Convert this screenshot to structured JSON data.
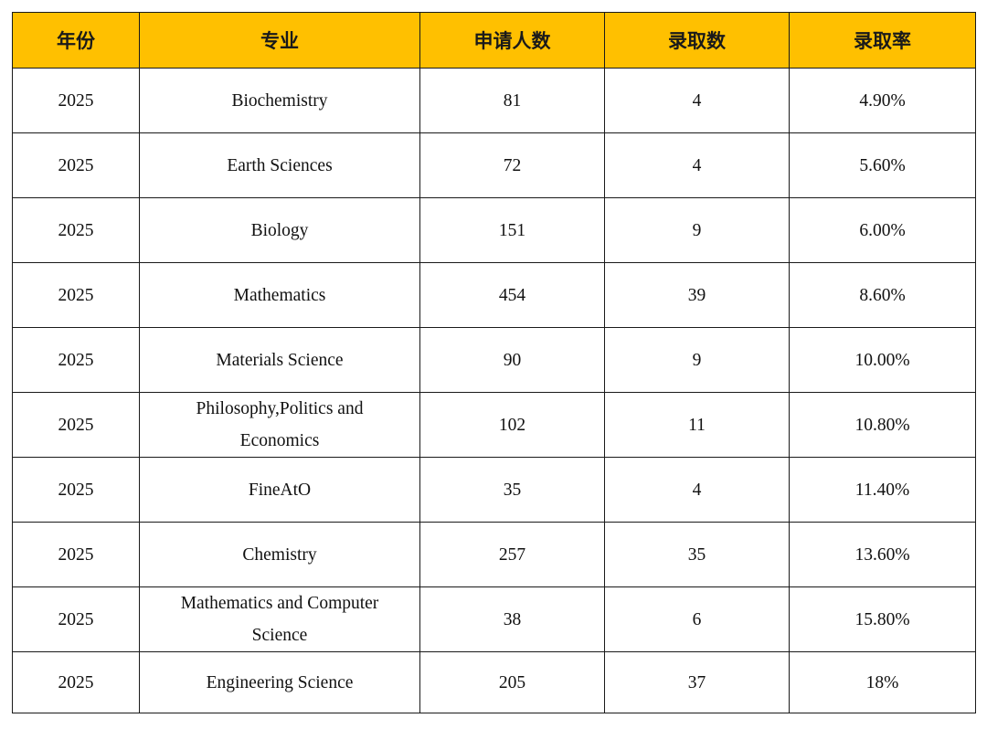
{
  "headers": {
    "year": "年份",
    "major": "专业",
    "applicants": "申请人数",
    "admitted": "录取数",
    "rate": "录取率"
  },
  "rows": [
    {
      "year": "2025",
      "major": "Biochemistry",
      "applicants": "81",
      "admitted": "4",
      "rate": "4.90%"
    },
    {
      "year": "2025",
      "major": "Earth Sciences",
      "applicants": "72",
      "admitted": "4",
      "rate": "5.60%"
    },
    {
      "year": "2025",
      "major": "Biology",
      "applicants": "151",
      "admitted": "9",
      "rate": "6.00%"
    },
    {
      "year": "2025",
      "major": "Mathematics",
      "applicants": "454",
      "admitted": "39",
      "rate": "8.60%"
    },
    {
      "year": "2025",
      "major": "Materials Science",
      "applicants": "90",
      "admitted": "9",
      "rate": "10.00%"
    },
    {
      "year": "2025",
      "major": "Philosophy,Politics and Economics",
      "applicants": "102",
      "admitted": "11",
      "rate": "10.80%"
    },
    {
      "year": "2025",
      "major": "FineAtO",
      "applicants": "35",
      "admitted": "4",
      "rate": "11.40%"
    },
    {
      "year": "2025",
      "major": "Chemistry",
      "applicants": "257",
      "admitted": "35",
      "rate": "13.60%"
    },
    {
      "year": "2025",
      "major": "Mathematics and Computer Science",
      "applicants": "38",
      "admitted": "6",
      "rate": "15.80%"
    },
    {
      "year": "2025",
      "major": "Engineering Science",
      "applicants": "205",
      "admitted": "37",
      "rate": "18%"
    }
  ],
  "colors": {
    "header_background": "#ffc000",
    "border": "#1a1a1a"
  }
}
